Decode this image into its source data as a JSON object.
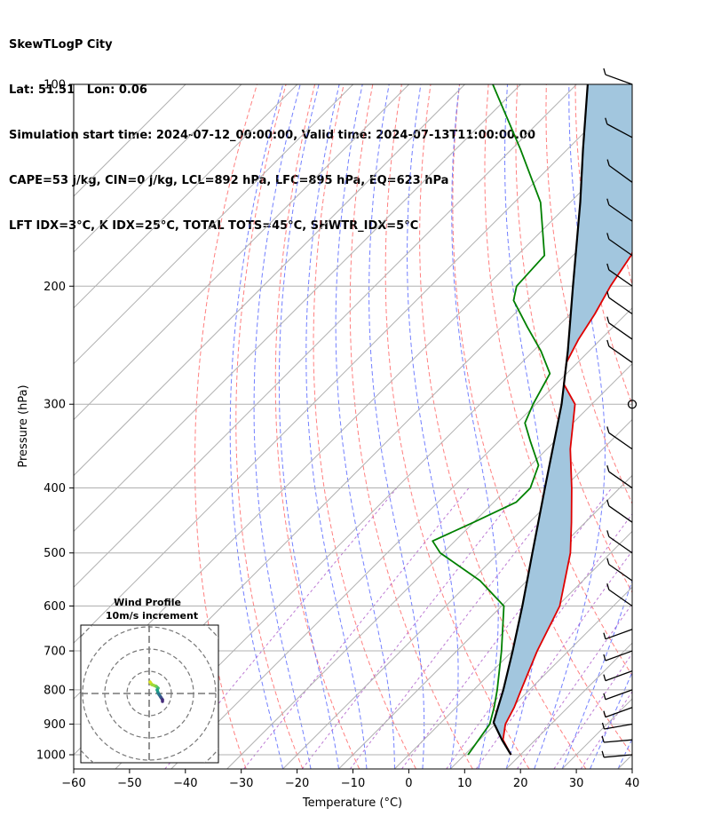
{
  "header": {
    "line1": "SkewTLogP City",
    "line2": "Lat: 51.51   Lon: 0.06",
    "line3": "Simulation start time: 2024-07-12_00:00:00, Valid time: 2024-07-13T11:00:00.00",
    "line4": "CAPE=53 j/kg, CIN=0 j/kg, LCL=892 hPa, LFC=895 hPa, EQ=623 hPa",
    "line5": "LFT IDX=3°C, K IDX=25°C, TOTAL TOTS=45°C, SHWTR_IDX=5°C"
  },
  "chart_data": {
    "type": "line",
    "subtype": "skew-t log-p",
    "xlabel": "Temperature (°C)",
    "ylabel": "Pressure (hPa)",
    "xlim": [
      -60,
      40
    ],
    "ylim": [
      1050,
      100
    ],
    "y_scale": "log",
    "x_ticks": [
      "−60",
      "−50",
      "−40",
      "−30",
      "−20",
      "−10",
      "0",
      "10",
      "20",
      "30",
      "40"
    ],
    "y_ticks": [
      "1000",
      "900",
      "800",
      "700",
      "600",
      "500",
      "400",
      "300",
      "200",
      "100"
    ],
    "grid": true,
    "series": [
      {
        "key": "temperature",
        "color": "#e00000",
        "points": [
          [
            1000,
            18.3
          ],
          [
            950,
            14.2
          ],
          [
            900,
            11.8
          ],
          [
            850,
            10.4
          ],
          [
            800,
            8.5
          ],
          [
            700,
            4.4
          ],
          [
            600,
            0.4
          ],
          [
            500,
            -7.2
          ],
          [
            450,
            -12.5
          ],
          [
            400,
            -18.6
          ],
          [
            350,
            -25.8
          ],
          [
            300,
            -33.0
          ],
          [
            280,
            -38.6
          ],
          [
            260,
            -42.0
          ],
          [
            240,
            -44.0
          ],
          [
            220,
            -45.6
          ],
          [
            200,
            -47.8
          ],
          [
            180,
            -49.6
          ],
          [
            160,
            -52.8
          ],
          [
            140,
            -56.4
          ],
          [
            120,
            -60.5
          ],
          [
            100,
            -64.2
          ]
        ]
      },
      {
        "key": "dewpoint",
        "color": "#008000",
        "points": [
          [
            1000,
            10.6
          ],
          [
            900,
            9.0
          ],
          [
            850,
            6.8
          ],
          [
            800,
            4.2
          ],
          [
            700,
            -2.0
          ],
          [
            600,
            -9.6
          ],
          [
            550,
            -18.4
          ],
          [
            500,
            -30.5
          ],
          [
            480,
            -34.0
          ],
          [
            450,
            -30.0
          ],
          [
            420,
            -26.0
          ],
          [
            400,
            -26.0
          ],
          [
            370,
            -28.6
          ],
          [
            340,
            -34.5
          ],
          [
            320,
            -38.6
          ],
          [
            300,
            -40.5
          ],
          [
            270,
            -43.0
          ],
          [
            250,
            -48.6
          ],
          [
            230,
            -55.4
          ],
          [
            210,
            -62.6
          ],
          [
            200,
            -64.6
          ],
          [
            180,
            -65.1
          ],
          [
            150,
            -75.3
          ],
          [
            125,
            -88.4
          ],
          [
            100,
            -105.0
          ]
        ]
      },
      {
        "key": "parcel",
        "color": "#000000",
        "points": [
          [
            1000,
            18.3
          ],
          [
            950,
            14.0
          ],
          [
            895,
            9.4
          ],
          [
            850,
            7.5
          ],
          [
            800,
            5.3
          ],
          [
            700,
            0.0
          ],
          [
            600,
            -6.3
          ],
          [
            500,
            -14.0
          ],
          [
            400,
            -23.4
          ],
          [
            300,
            -35.4
          ],
          [
            250,
            -43.8
          ],
          [
            200,
            -54.5
          ],
          [
            150,
            -68.2
          ],
          [
            125,
            -77.2
          ],
          [
            100,
            -88.0
          ]
        ]
      }
    ],
    "cape_shading_color": "#a2c6de",
    "reference_lines": {
      "dry_adiabats_color": "#ff6060",
      "moist_adiabats_color": "#5060ff",
      "mixing_ratio_color": "#a040c0"
    },
    "wind_barbs": {
      "pressures": [
        100,
        120,
        140,
        160,
        180,
        200,
        220,
        240,
        260,
        300,
        350,
        400,
        450,
        500,
        550,
        600,
        650,
        700,
        750,
        800,
        850,
        900,
        950,
        1000
      ]
    },
    "inset": {
      "title": "Wind Profile",
      "subtitle": "10m/s increment"
    }
  }
}
